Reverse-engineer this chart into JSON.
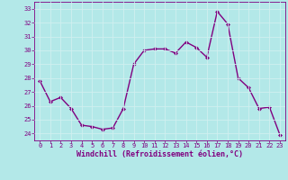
{
  "x": [
    0,
    1,
    2,
    3,
    4,
    5,
    6,
    7,
    8,
    9,
    10,
    11,
    12,
    13,
    14,
    15,
    16,
    17,
    18,
    19,
    20,
    21,
    22,
    23
  ],
  "y": [
    27.8,
    26.3,
    26.6,
    25.8,
    24.6,
    24.5,
    24.3,
    24.4,
    25.8,
    29.0,
    30.0,
    30.1,
    30.1,
    29.8,
    30.6,
    30.2,
    29.5,
    32.8,
    31.9,
    28.0,
    27.3,
    25.8,
    25.9,
    23.9
  ],
  "line_color": "#800080",
  "marker": "D",
  "marker_size": 2.0,
  "line_width": 1.0,
  "bg_color": "#b3e8e8",
  "grid_color": "#d0f0f0",
  "xlabel": "Windchill (Refroidissement éolien,°C)",
  "xlabel_color": "#800080",
  "tick_color": "#800080",
  "ylim": [
    23.5,
    33.5
  ],
  "yticks": [
    24,
    25,
    26,
    27,
    28,
    29,
    30,
    31,
    32,
    33
  ],
  "xlim": [
    -0.5,
    23.5
  ],
  "xticks": [
    0,
    1,
    2,
    3,
    4,
    5,
    6,
    7,
    8,
    9,
    10,
    11,
    12,
    13,
    14,
    15,
    16,
    17,
    18,
    19,
    20,
    21,
    22,
    23
  ],
  "xlabel_fontsize": 6.0,
  "tick_fontsize": 5.0
}
